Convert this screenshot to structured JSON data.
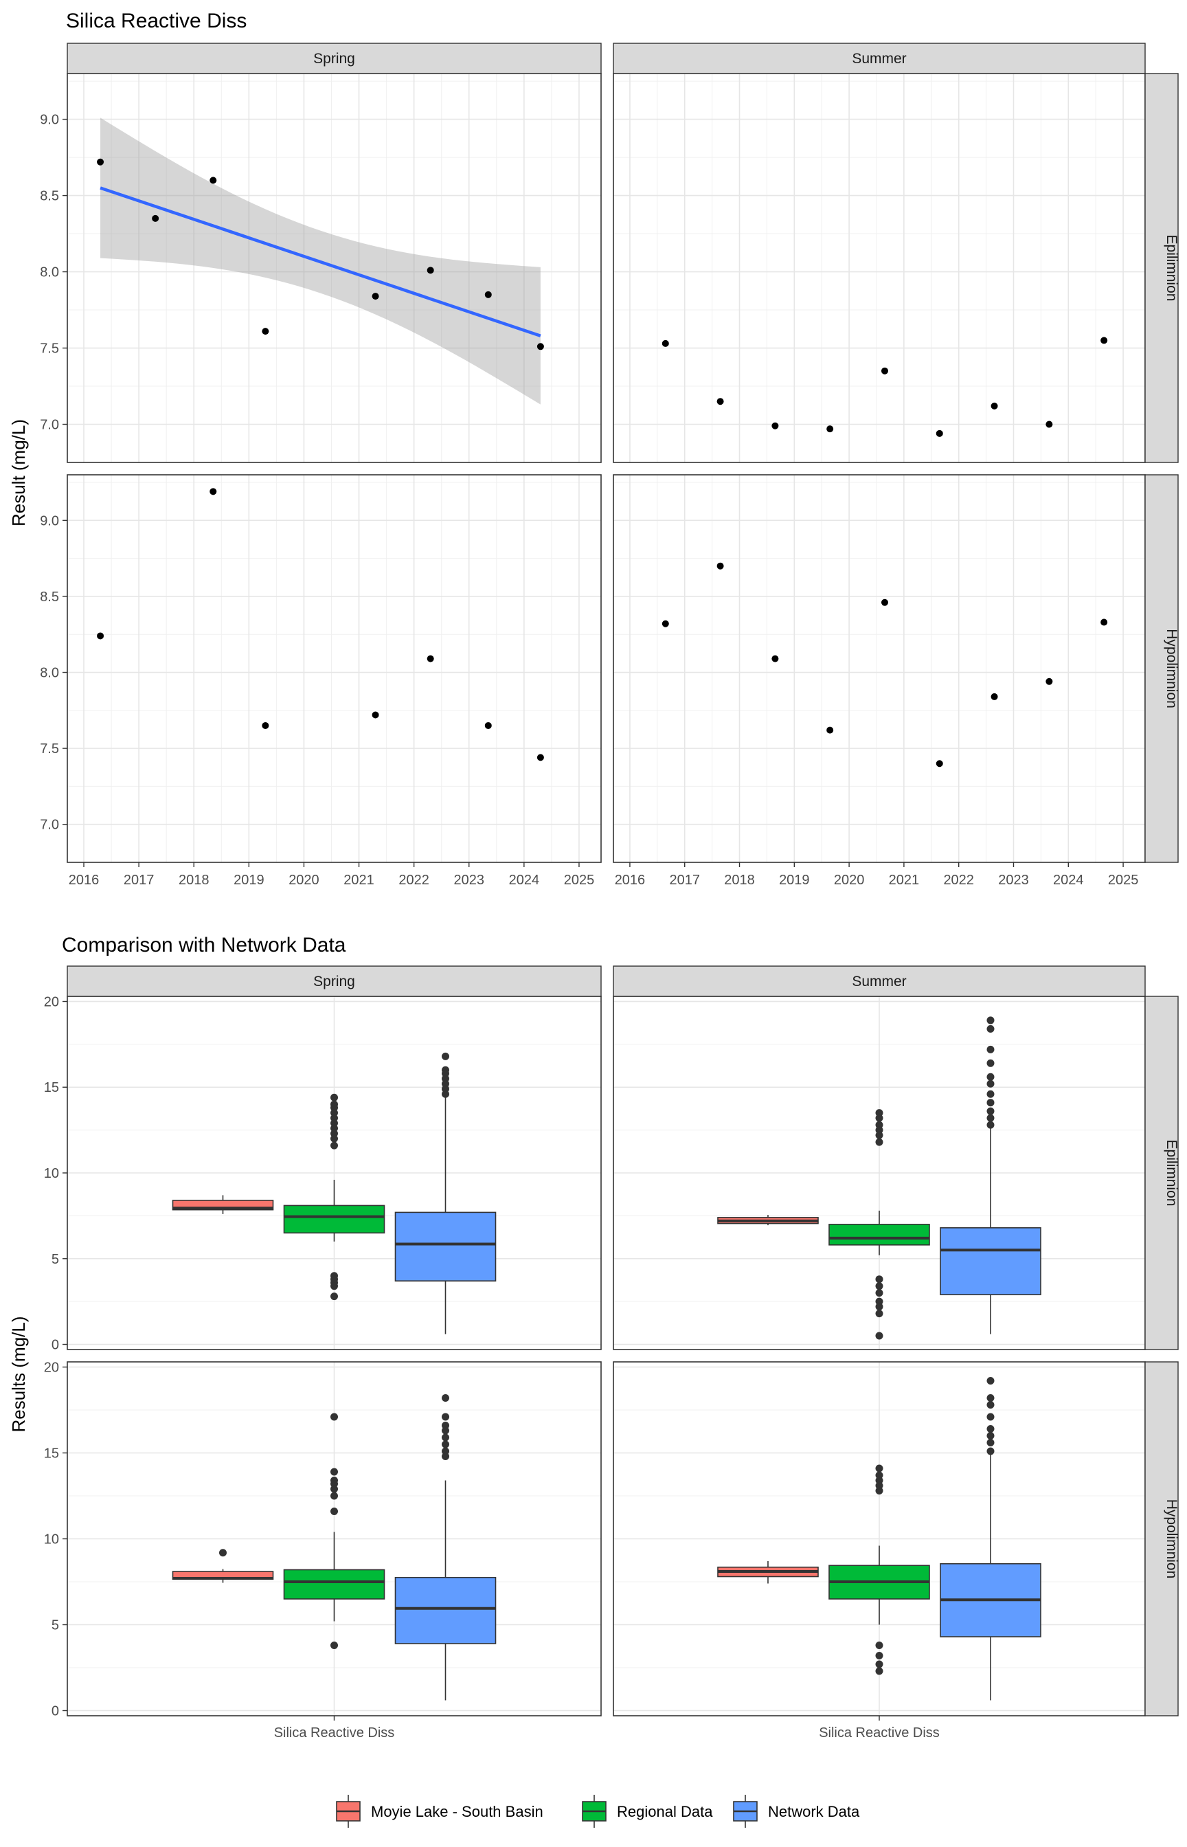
{
  "chart_data": [
    {
      "type": "scatter",
      "title": "Silica Reactive Diss",
      "ylabel": "Result (mg/L)",
      "xlabel": "",
      "x_ticks": [
        "2016",
        "2017",
        "2018",
        "2019",
        "2020",
        "2021",
        "2022",
        "2023",
        "2024",
        "2025"
      ],
      "y_ticks": [
        "7.0",
        "7.5",
        "8.0",
        "8.5",
        "9.0"
      ],
      "xlim": [
        2015.7,
        2025.4
      ],
      "ylim": [
        6.75,
        9.3
      ],
      "columns": [
        "Spring",
        "Summer"
      ],
      "rows": [
        "Epilimnion",
        "Hypolimnion"
      ],
      "grid": true,
      "panels": [
        {
          "column": "Spring",
          "row": "Epilimnion",
          "points": [
            [
              2016.3,
              8.72
            ],
            [
              2017.3,
              8.35
            ],
            [
              2018.35,
              8.6
            ],
            [
              2019.3,
              7.61
            ],
            [
              2021.3,
              7.84
            ],
            [
              2022.3,
              8.01
            ],
            [
              2023.35,
              7.85
            ],
            [
              2024.3,
              7.51
            ]
          ],
          "trend": {
            "x": [
              2016.3,
              2024.3
            ],
            "y": [
              8.55,
              7.58
            ],
            "ci_lower": [
              8.1,
              7.13
            ],
            "ci_upper": [
              9.01,
              8.03
            ],
            "color": "#3366FF"
          }
        },
        {
          "column": "Summer",
          "row": "Epilimnion",
          "points": [
            [
              2016.65,
              7.53
            ],
            [
              2017.65,
              7.15
            ],
            [
              2018.65,
              6.99
            ],
            [
              2019.65,
              6.97
            ],
            [
              2020.65,
              7.35
            ],
            [
              2021.65,
              6.94
            ],
            [
              2022.65,
              7.12
            ],
            [
              2023.65,
              7.0
            ],
            [
              2024.65,
              7.55
            ]
          ]
        },
        {
          "column": "Spring",
          "row": "Hypolimnion",
          "points": [
            [
              2016.3,
              8.24
            ],
            [
              2018.35,
              9.19
            ],
            [
              2019.3,
              7.65
            ],
            [
              2021.3,
              7.72
            ],
            [
              2022.3,
              8.09
            ],
            [
              2023.35,
              7.65
            ],
            [
              2024.3,
              7.44
            ]
          ]
        },
        {
          "column": "Summer",
          "row": "Hypolimnion",
          "points": [
            [
              2016.65,
              8.32
            ],
            [
              2017.65,
              8.7
            ],
            [
              2018.65,
              8.09
            ],
            [
              2019.65,
              7.62
            ],
            [
              2020.65,
              8.46
            ],
            [
              2021.65,
              7.4
            ],
            [
              2022.65,
              7.84
            ],
            [
              2023.65,
              7.94
            ],
            [
              2024.65,
              8.33
            ]
          ]
        }
      ]
    },
    {
      "type": "box",
      "title": "Comparison with Network Data",
      "ylabel": "Results (mg/L)",
      "category_label": "Silica Reactive Diss",
      "y_ticks": [
        "0",
        "5",
        "10",
        "15",
        "20"
      ],
      "ylim": [
        -0.3,
        20.3
      ],
      "columns": [
        "Spring",
        "Summer"
      ],
      "rows": [
        "Epilimnion",
        "Hypolimnion"
      ],
      "grid": true,
      "legend": {
        "position": "bottom",
        "entries": [
          {
            "name": "Moyie Lake - South Basin",
            "color": "#F8766D"
          },
          {
            "name": "Regional Data",
            "color": "#00BA38"
          },
          {
            "name": "Network Data",
            "color": "#619CFF"
          }
        ]
      },
      "panels": [
        {
          "column": "Spring",
          "row": "Epilimnion",
          "boxes": [
            {
              "series": "Moyie Lake - South Basin",
              "min": 7.6,
              "q1": 7.85,
              "median": 7.95,
              "q3": 8.4,
              "max": 8.7,
              "outliers": []
            },
            {
              "series": "Regional Data",
              "min": 6.0,
              "q1": 6.5,
              "median": 7.45,
              "q3": 8.1,
              "max": 9.6,
              "outliers": [
                14.4,
                14.0,
                13.8,
                13.5,
                13.2,
                12.9,
                12.6,
                12.3,
                12.0,
                11.6,
                4.0,
                3.8,
                3.6,
                3.4,
                2.8
              ]
            },
            {
              "series": "Network Data",
              "min": 0.6,
              "q1": 3.7,
              "median": 5.85,
              "q3": 7.7,
              "max": 14.4,
              "outliers": [
                16.8,
                16.0,
                15.8,
                15.5,
                15.2,
                14.9,
                14.6
              ]
            }
          ]
        },
        {
          "column": "Summer",
          "row": "Epilimnion",
          "boxes": [
            {
              "series": "Moyie Lake - South Basin",
              "min": 6.95,
              "q1": 7.05,
              "median": 7.2,
              "q3": 7.4,
              "max": 7.55,
              "outliers": []
            },
            {
              "series": "Regional Data",
              "min": 5.2,
              "q1": 5.8,
              "median": 6.2,
              "q3": 7.0,
              "max": 7.8,
              "outliers": [
                13.5,
                13.2,
                12.8,
                12.5,
                12.2,
                11.8,
                3.8,
                3.4,
                3.0,
                2.5,
                2.2,
                1.8,
                0.5
              ]
            },
            {
              "series": "Network Data",
              "min": 0.6,
              "q1": 2.9,
              "median": 5.5,
              "q3": 6.8,
              "max": 12.6,
              "outliers": [
                18.9,
                18.4,
                17.2,
                16.4,
                15.6,
                15.2,
                14.6,
                14.1,
                13.6,
                13.2,
                12.8
              ]
            }
          ]
        },
        {
          "column": "Spring",
          "row": "Hypolimnion",
          "boxes": [
            {
              "series": "Moyie Lake - South Basin",
              "min": 7.44,
              "q1": 7.65,
              "median": 7.7,
              "q3": 8.1,
              "max": 8.24,
              "outliers": [
                9.19
              ]
            },
            {
              "series": "Regional Data",
              "min": 5.2,
              "q1": 6.5,
              "median": 7.5,
              "q3": 8.2,
              "max": 10.4,
              "outliers": [
                17.1,
                13.9,
                13.4,
                13.2,
                12.9,
                12.5,
                11.6,
                3.8
              ]
            },
            {
              "series": "Network Data",
              "min": 0.6,
              "q1": 3.9,
              "median": 5.95,
              "q3": 7.75,
              "max": 13.4,
              "outliers": [
                18.2,
                17.1,
                16.6,
                16.3,
                15.9,
                15.5,
                15.1,
                14.8
              ]
            }
          ]
        },
        {
          "column": "Summer",
          "row": "Hypolimnion",
          "boxes": [
            {
              "series": "Moyie Lake - South Basin",
              "min": 7.4,
              "q1": 7.8,
              "median": 8.1,
              "q3": 8.35,
              "max": 8.7,
              "outliers": []
            },
            {
              "series": "Regional Data",
              "min": 5.0,
              "q1": 6.5,
              "median": 7.5,
              "q3": 8.45,
              "max": 9.6,
              "outliers": [
                14.1,
                13.7,
                13.4,
                13.1,
                12.8,
                3.8,
                3.2,
                2.7,
                2.3
              ]
            },
            {
              "series": "Network Data",
              "min": 0.6,
              "q1": 4.3,
              "median": 6.45,
              "q3": 8.55,
              "max": 15.0,
              "outliers": [
                19.2,
                18.2,
                17.8,
                17.1,
                16.4,
                16.0,
                15.6,
                15.1
              ]
            }
          ]
        }
      ]
    }
  ]
}
